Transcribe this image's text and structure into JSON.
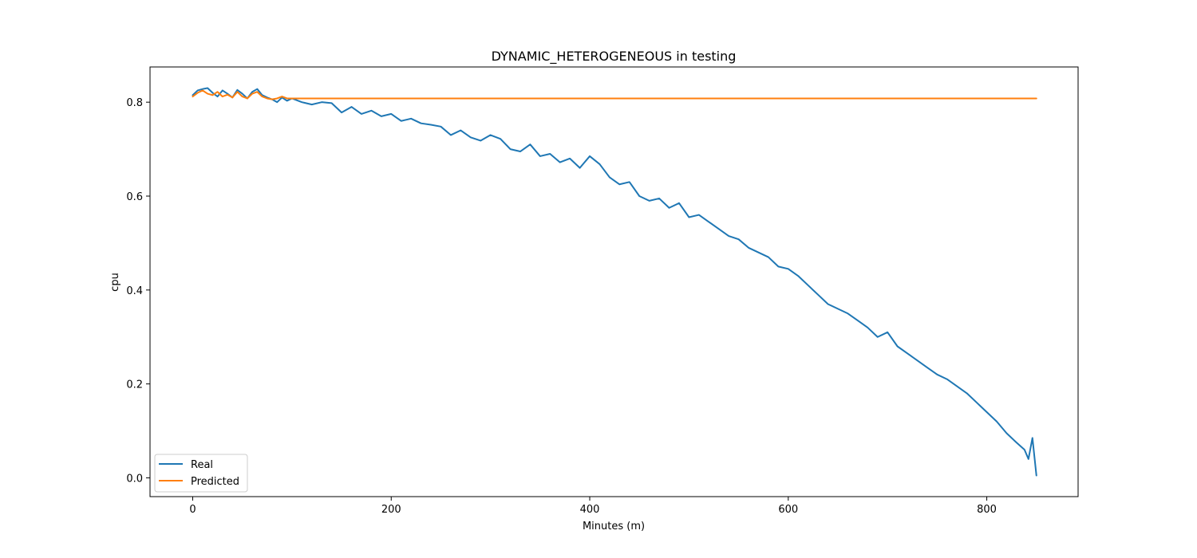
{
  "chart_data": {
    "type": "line",
    "title": "DYNAMIC_HETEROGENEOUS in testing",
    "xlabel": "Minutes (m)",
    "ylabel": "cpu",
    "xlim": [
      -43,
      892
    ],
    "ylim": [
      -0.04,
      0.875
    ],
    "xticks": [
      0,
      200,
      400,
      600,
      800
    ],
    "yticks": [
      0.0,
      0.2,
      0.4,
      0.6,
      0.8
    ],
    "xtick_labels": [
      "0",
      "200",
      "400",
      "600",
      "800"
    ],
    "ytick_labels": [
      "0.0",
      "0.2",
      "0.4",
      "0.6",
      "0.8"
    ],
    "grid": false,
    "legend_position": "bottom-left",
    "series": [
      {
        "name": "Real",
        "color": "#1f77b4",
        "x": [
          0,
          5,
          10,
          15,
          20,
          25,
          30,
          35,
          40,
          45,
          50,
          55,
          60,
          65,
          70,
          75,
          80,
          85,
          90,
          95,
          100,
          110,
          120,
          130,
          140,
          150,
          160,
          170,
          180,
          190,
          200,
          210,
          220,
          230,
          240,
          250,
          260,
          270,
          280,
          290,
          300,
          310,
          320,
          330,
          340,
          350,
          360,
          370,
          380,
          390,
          400,
          410,
          420,
          430,
          440,
          450,
          460,
          470,
          480,
          490,
          500,
          510,
          520,
          530,
          540,
          550,
          560,
          570,
          580,
          590,
          600,
          610,
          620,
          630,
          640,
          650,
          660,
          670,
          680,
          690,
          700,
          710,
          720,
          730,
          740,
          750,
          760,
          770,
          780,
          790,
          800,
          810,
          820,
          830,
          838,
          842,
          846,
          850
        ],
        "values": [
          0.815,
          0.825,
          0.828,
          0.83,
          0.82,
          0.812,
          0.825,
          0.818,
          0.81,
          0.826,
          0.818,
          0.808,
          0.822,
          0.828,
          0.815,
          0.81,
          0.806,
          0.8,
          0.81,
          0.803,
          0.808,
          0.8,
          0.795,
          0.8,
          0.798,
          0.778,
          0.79,
          0.775,
          0.782,
          0.77,
          0.775,
          0.76,
          0.765,
          0.755,
          0.752,
          0.748,
          0.73,
          0.74,
          0.725,
          0.718,
          0.73,
          0.722,
          0.7,
          0.695,
          0.71,
          0.685,
          0.69,
          0.672,
          0.68,
          0.66,
          0.685,
          0.668,
          0.64,
          0.625,
          0.63,
          0.6,
          0.59,
          0.595,
          0.575,
          0.585,
          0.555,
          0.56,
          0.545,
          0.53,
          0.515,
          0.508,
          0.49,
          0.48,
          0.47,
          0.45,
          0.445,
          0.43,
          0.41,
          0.39,
          0.37,
          0.36,
          0.35,
          0.335,
          0.32,
          0.3,
          0.31,
          0.28,
          0.265,
          0.25,
          0.235,
          0.22,
          0.21,
          0.195,
          0.18,
          0.16,
          0.14,
          0.12,
          0.095,
          0.075,
          0.06,
          0.04,
          0.085,
          0.005
        ]
      },
      {
        "name": "Predicted",
        "color": "#ff7f0e",
        "x": [
          0,
          5,
          10,
          15,
          20,
          25,
          30,
          35,
          40,
          45,
          50,
          55,
          60,
          65,
          70,
          75,
          80,
          85,
          90,
          95,
          100,
          120,
          150,
          200,
          300,
          400,
          500,
          600,
          700,
          800,
          850
        ],
        "values": [
          0.812,
          0.82,
          0.825,
          0.818,
          0.815,
          0.822,
          0.812,
          0.816,
          0.81,
          0.822,
          0.812,
          0.808,
          0.818,
          0.822,
          0.812,
          0.808,
          0.806,
          0.808,
          0.812,
          0.808,
          0.808,
          0.808,
          0.808,
          0.808,
          0.808,
          0.808,
          0.808,
          0.808,
          0.808,
          0.808,
          0.808
        ]
      }
    ]
  }
}
